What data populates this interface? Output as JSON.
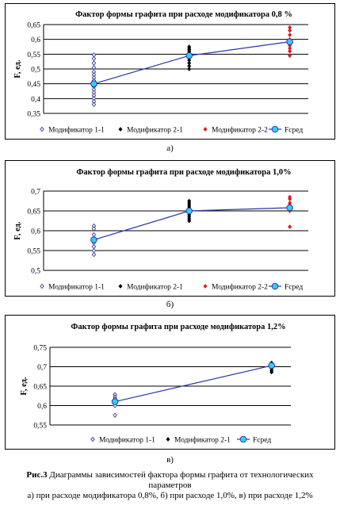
{
  "chart_data": [
    {
      "type": "scatter",
      "title": "Фактор формы графита при расходе модификатора 0,8 %",
      "ylabel": "F, ед.",
      "ylim": [
        0.35,
        0.65
      ],
      "yticks": [
        "0,35",
        "0,4",
        "0,45",
        "0,5",
        "0,55",
        "0,6",
        "0,65"
      ],
      "grid": true,
      "legend_position": "bottom",
      "series": [
        {
          "name": "Модификатор 1-1",
          "marker": "diamond-open",
          "color": "#3a3f8f",
          "x": 1,
          "values": [
            0.548,
            0.535,
            0.52,
            0.505,
            0.49,
            0.48,
            0.47,
            0.46,
            0.45,
            0.44,
            0.43,
            0.42,
            0.41,
            0.4,
            0.39,
            0.38
          ]
        },
        {
          "name": "Модификатор 2-1",
          "marker": "diamond",
          "color": "#000000",
          "x": 2,
          "values": [
            0.575,
            0.57,
            0.565,
            0.56,
            0.555,
            0.55,
            0.545,
            0.54,
            0.53,
            0.52,
            0.51,
            0.5
          ]
        },
        {
          "name": "Модификатор 2-2",
          "marker": "diamond",
          "color": "#e0141e",
          "x": 3,
          "values": [
            0.64,
            0.63,
            0.615,
            0.6,
            0.59,
            0.58,
            0.57,
            0.56,
            0.545
          ]
        },
        {
          "name": "Fсред",
          "marker": "circle-line",
          "color": "#2a36a8",
          "x": [
            1,
            2,
            3
          ],
          "values": [
            0.45,
            0.545,
            0.592
          ]
        }
      ],
      "sublabel": "а)"
    },
    {
      "type": "scatter",
      "title": "Фактор формы графита при расходе модификатора 1,0%",
      "ylabel": "F, ед.",
      "ylim": [
        0.5,
        0.7
      ],
      "yticks": [
        "0,5",
        "0,55",
        "0,6",
        "0,65",
        "0,7"
      ],
      "grid": true,
      "legend_position": "bottom",
      "series": [
        {
          "name": "Модификатор 1-1",
          "marker": "diamond-open",
          "color": "#3a3f8f",
          "x": 1,
          "values": [
            0.612,
            0.605,
            0.59,
            0.58,
            0.57,
            0.56,
            0.55,
            0.54
          ]
        },
        {
          "name": "Модификатор 2-1",
          "marker": "diamond",
          "color": "#000000",
          "x": 2,
          "values": [
            0.675,
            0.67,
            0.665,
            0.66,
            0.655,
            0.65,
            0.645,
            0.64,
            0.635,
            0.63,
            0.625
          ]
        },
        {
          "name": "Модификатор 2-2",
          "marker": "diamond",
          "color": "#e0141e",
          "x": 3,
          "values": [
            0.685,
            0.68,
            0.67,
            0.665,
            0.66,
            0.655,
            0.65,
            0.61
          ]
        },
        {
          "name": "Fсред",
          "marker": "circle-line",
          "color": "#2a36a8",
          "x": [
            1,
            2,
            3
          ],
          "values": [
            0.577,
            0.65,
            0.658
          ]
        }
      ],
      "sublabel": "б)"
    },
    {
      "type": "scatter",
      "title": "Фактор формы графита при расходе модификатора 1,2%",
      "ylabel": "F, ед.",
      "ylim": [
        0.55,
        0.75
      ],
      "yticks": [
        "0,55",
        "0,6",
        "0,65",
        "0,7",
        "0,75"
      ],
      "grid": true,
      "legend_position": "bottom",
      "series": [
        {
          "name": "Модификатор 1-1",
          "marker": "diamond-open",
          "color": "#3a3f8f",
          "x": 1,
          "values": [
            0.628,
            0.622,
            0.617,
            0.612,
            0.607,
            0.6,
            0.575
          ]
        },
        {
          "name": "Модификатор 2-1",
          "marker": "diamond",
          "color": "#000000",
          "x": 2,
          "values": [
            0.71,
            0.705,
            0.7,
            0.695,
            0.69,
            0.686
          ]
        },
        {
          "name": "Fсред",
          "marker": "circle-line",
          "color": "#2a36a8",
          "x": [
            1,
            2
          ],
          "values": [
            0.61,
            0.703
          ]
        }
      ],
      "sublabel": "в)"
    }
  ],
  "caption": {
    "lead": "Рис.3",
    "line1": " Диаграммы зависимостей фактора формы графита от технологических",
    "line2": "параметров",
    "line3": "а) при расходе модификатора 0,8%, б) при расходе 1,0%, в) при расходе 1,2%"
  }
}
